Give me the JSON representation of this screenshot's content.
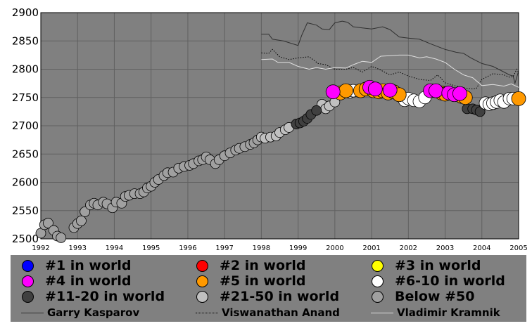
{
  "chart_data": {
    "type": "scatter",
    "title": "",
    "xlabel": "",
    "ylabel": "",
    "xlim": [
      1992,
      2005
    ],
    "ylim": [
      2500,
      2900
    ],
    "x_ticks": [
      "1992",
      "1993",
      "1994",
      "1995",
      "1996",
      "1997",
      "1998",
      "1999",
      "2000",
      "2001",
      "2002",
      "2003",
      "2004",
      "2005"
    ],
    "y_ticks": [
      "2500",
      "2550",
      "2600",
      "2650",
      "2700",
      "2750",
      "2800",
      "2850",
      "2900"
    ],
    "grid": true,
    "legend_position": "bottom",
    "rank_colors": {
      "rank1": "#0000ff",
      "rank2": "#ff0000",
      "rank3": "#ffff00",
      "rank4": "#ff00ff",
      "rank5": "#ff9900",
      "rank6_10": "#ffffff",
      "rank11_20": "#404040",
      "rank21_50": "#c0c0c0",
      "below50": "#a0a0a0"
    },
    "series": [
      {
        "name": "Below #50",
        "color": "#a0a0a0",
        "points": [
          [
            1992.0,
            2510
          ],
          [
            1992.1,
            2525
          ],
          [
            1992.2,
            2528
          ],
          [
            1992.35,
            2515
          ],
          [
            1992.45,
            2505
          ],
          [
            1992.55,
            2502
          ],
          [
            1992.9,
            2520
          ],
          [
            1993.0,
            2527
          ],
          [
            1993.1,
            2532
          ],
          [
            1993.2,
            2548
          ],
          [
            1993.35,
            2560
          ],
          [
            1993.45,
            2563
          ],
          [
            1993.55,
            2560
          ],
          [
            1993.7,
            2565
          ],
          [
            1993.8,
            2562
          ],
          [
            1993.95,
            2555
          ],
          [
            1994.05,
            2565
          ],
          [
            1994.2,
            2563
          ],
          [
            1994.3,
            2575
          ],
          [
            1994.4,
            2577
          ],
          [
            1994.55,
            2580
          ],
          [
            1994.7,
            2580
          ],
          [
            1994.8,
            2583
          ],
          [
            1994.9,
            2590
          ],
          [
            1995.0,
            2593
          ],
          [
            1995.1,
            2600
          ],
          [
            1995.2,
            2605
          ],
          [
            1995.35,
            2612
          ],
          [
            1995.45,
            2617
          ],
          [
            1995.6,
            2618
          ],
          [
            1995.75,
            2625
          ],
          [
            1995.9,
            2628
          ],
          [
            1996.05,
            2630
          ],
          [
            1996.15,
            2633
          ],
          [
            1996.3,
            2638
          ],
          [
            1996.4,
            2640
          ],
          [
            1996.5,
            2645
          ],
          [
            1996.6,
            2640
          ],
          [
            1996.75,
            2633
          ],
          [
            1996.85,
            2640
          ],
          [
            1997.0,
            2647
          ],
          [
            1997.15,
            2652
          ],
          [
            1997.3,
            2657
          ],
          [
            1997.4,
            2660
          ],
          [
            1997.55,
            2663
          ],
          [
            1997.7,
            2667
          ],
          [
            1997.8,
            2670
          ],
          [
            1997.9,
            2675
          ]
        ]
      },
      {
        "name": "#21-50 in world",
        "color": "#c0c0c0",
        "points": [
          [
            1998.0,
            2680
          ],
          [
            1998.1,
            2678
          ],
          [
            1998.25,
            2680
          ],
          [
            1998.4,
            2682
          ],
          [
            1998.5,
            2688
          ],
          [
            1998.65,
            2693
          ],
          [
            1998.75,
            2697
          ],
          [
            1999.65,
            2738
          ],
          [
            1999.75,
            2730
          ],
          [
            1999.85,
            2735
          ],
          [
            2000.0,
            2742
          ]
        ]
      },
      {
        "name": "#11-20 in world",
        "color": "#404040",
        "points": [
          [
            1998.95,
            2703
          ],
          [
            1999.05,
            2705
          ],
          [
            1999.15,
            2708
          ],
          [
            1999.25,
            2713
          ],
          [
            1999.35,
            2720
          ],
          [
            1999.5,
            2727
          ],
          [
            2003.6,
            2730
          ],
          [
            2003.75,
            2730
          ],
          [
            2003.85,
            2728
          ],
          [
            2003.95,
            2725
          ]
        ]
      },
      {
        "name": "#6-10 in world",
        "color": "#ffffff",
        "points": [
          [
            2000.4,
            2760
          ],
          [
            2000.5,
            2762
          ],
          [
            2001.9,
            2745
          ],
          [
            2002.0,
            2748
          ],
          [
            2002.15,
            2745
          ],
          [
            2002.3,
            2743
          ],
          [
            2002.45,
            2750
          ],
          [
            2004.1,
            2740
          ],
          [
            2004.2,
            2738
          ],
          [
            2004.3,
            2740
          ],
          [
            2004.4,
            2742
          ],
          [
            2004.5,
            2745
          ],
          [
            2004.6,
            2742
          ],
          [
            2004.75,
            2748
          ],
          [
            2004.85,
            2748
          ]
        ]
      },
      {
        "name": "#5 in world",
        "color": "#ff9900",
        "points": [
          [
            2000.15,
            2758
          ],
          [
            2000.3,
            2762
          ],
          [
            2000.7,
            2762
          ],
          [
            2000.85,
            2765
          ],
          [
            2001.05,
            2762
          ],
          [
            2001.2,
            2760
          ],
          [
            2001.3,
            2762
          ],
          [
            2001.45,
            2758
          ],
          [
            2001.6,
            2760
          ],
          [
            2001.75,
            2755
          ],
          [
            2002.9,
            2758
          ],
          [
            2003.0,
            2756
          ],
          [
            2003.45,
            2752
          ],
          [
            2003.55,
            2750
          ],
          [
            2005.0,
            2748
          ]
        ]
      },
      {
        "name": "#4 in world",
        "color": "#ff00ff",
        "points": [
          [
            1999.95,
            2760
          ],
          [
            2000.95,
            2768
          ],
          [
            2001.1,
            2765
          ],
          [
            2001.5,
            2763
          ],
          [
            2002.6,
            2762
          ],
          [
            2002.75,
            2762
          ],
          [
            2003.1,
            2758
          ],
          [
            2003.25,
            2755
          ],
          [
            2003.4,
            2757
          ]
        ]
      },
      {
        "name": "Garry Kasparov",
        "style": "solid",
        "color": "#303030",
        "points": [
          [
            1998.0,
            2862
          ],
          [
            1998.2,
            2862
          ],
          [
            1998.3,
            2853
          ],
          [
            1998.6,
            2850
          ],
          [
            1999.0,
            2842
          ],
          [
            1999.1,
            2860
          ],
          [
            1999.25,
            2882
          ],
          [
            1999.5,
            2878
          ],
          [
            1999.65,
            2871
          ],
          [
            1999.85,
            2870
          ],
          [
            2000.0,
            2882
          ],
          [
            2000.2,
            2885
          ],
          [
            2000.35,
            2883
          ],
          [
            2000.5,
            2875
          ],
          [
            2000.75,
            2873
          ],
          [
            2001.0,
            2871
          ],
          [
            2001.3,
            2875
          ],
          [
            2001.5,
            2870
          ],
          [
            2001.75,
            2857
          ],
          [
            2002.0,
            2855
          ],
          [
            2002.3,
            2853
          ],
          [
            2002.6,
            2845
          ],
          [
            2002.8,
            2840
          ],
          [
            2003.0,
            2835
          ],
          [
            2003.3,
            2830
          ],
          [
            2003.5,
            2828
          ],
          [
            2003.7,
            2820
          ],
          [
            2004.0,
            2810
          ],
          [
            2004.3,
            2805
          ],
          [
            2004.6,
            2795
          ],
          [
            2004.75,
            2790
          ],
          [
            2004.85,
            2788
          ],
          [
            2004.9,
            2775
          ],
          [
            2005.0,
            2797
          ]
        ]
      },
      {
        "name": "Viswanathan Anand",
        "style": "dotted",
        "color": "#000000",
        "points": [
          [
            1998.0,
            2829
          ],
          [
            1998.2,
            2828
          ],
          [
            1998.3,
            2835
          ],
          [
            1998.5,
            2822
          ],
          [
            1998.75,
            2817
          ],
          [
            1999.0,
            2820
          ],
          [
            1999.3,
            2822
          ],
          [
            1999.55,
            2810
          ],
          [
            1999.75,
            2808
          ],
          [
            2000.0,
            2800
          ],
          [
            2000.3,
            2800
          ],
          [
            2000.5,
            2803
          ],
          [
            2000.75,
            2795
          ],
          [
            2001.0,
            2805
          ],
          [
            2001.2,
            2800
          ],
          [
            2001.5,
            2790
          ],
          [
            2001.75,
            2795
          ],
          [
            2002.0,
            2788
          ],
          [
            2002.3,
            2782
          ],
          [
            2002.6,
            2780
          ],
          [
            2002.8,
            2790
          ],
          [
            2003.0,
            2776
          ],
          [
            2003.3,
            2770
          ],
          [
            2003.6,
            2766
          ],
          [
            2003.75,
            2765
          ],
          [
            2003.85,
            2766
          ],
          [
            2004.0,
            2782
          ],
          [
            2004.3,
            2792
          ],
          [
            2004.6,
            2790
          ],
          [
            2004.75,
            2786
          ],
          [
            2004.85,
            2787
          ],
          [
            2004.95,
            2800
          ],
          [
            2005.0,
            2794
          ]
        ]
      },
      {
        "name": "Vladimir Kramnik",
        "style": "solid",
        "color": "#e0e0e0",
        "points": [
          [
            1998.0,
            2817
          ],
          [
            1998.3,
            2818
          ],
          [
            1998.45,
            2812
          ],
          [
            1998.75,
            2812
          ],
          [
            1999.0,
            2805
          ],
          [
            1999.3,
            2800
          ],
          [
            1999.5,
            2803
          ],
          [
            1999.75,
            2800
          ],
          [
            2000.0,
            2803
          ],
          [
            2000.3,
            2802
          ],
          [
            2000.5,
            2808
          ],
          [
            2000.75,
            2814
          ],
          [
            2001.0,
            2812
          ],
          [
            2001.25,
            2823
          ],
          [
            2001.5,
            2824
          ],
          [
            2001.75,
            2825
          ],
          [
            2002.0,
            2825
          ],
          [
            2002.3,
            2820
          ],
          [
            2002.5,
            2822
          ],
          [
            2002.75,
            2818
          ],
          [
            2003.0,
            2812
          ],
          [
            2003.25,
            2800
          ],
          [
            2003.5,
            2790
          ],
          [
            2003.75,
            2785
          ],
          [
            2004.0,
            2771
          ],
          [
            2004.3,
            2773
          ],
          [
            2004.6,
            2770
          ],
          [
            2004.8,
            2774
          ],
          [
            2005.0,
            2768
          ]
        ]
      }
    ]
  },
  "legend": {
    "items": [
      {
        "label": "#1 in world",
        "color": "#0000ff"
      },
      {
        "label": "#2 in world",
        "color": "#ff0000"
      },
      {
        "label": "#3 in world",
        "color": "#ffff00"
      },
      {
        "label": "#4 in world",
        "color": "#ff00ff"
      },
      {
        "label": "#5 in world",
        "color": "#ff9900"
      },
      {
        "label": "#6-10 in world",
        "color": "#ffffff"
      },
      {
        "label": "#11-20 in world",
        "color": "#404040"
      },
      {
        "label": "#21-50 in world",
        "color": "#c0c0c0"
      },
      {
        "label": "Below #50",
        "color": "#a0a0a0"
      }
    ],
    "lines": [
      {
        "label": "Garry Kasparov",
        "style": "solid",
        "color": "#303030"
      },
      {
        "label": "Viswanathan Anand",
        "style": "dotted",
        "color": "#000000"
      },
      {
        "label": "Vladimir Kramnik",
        "style": "solid",
        "color": "#e0e0e0"
      }
    ]
  }
}
